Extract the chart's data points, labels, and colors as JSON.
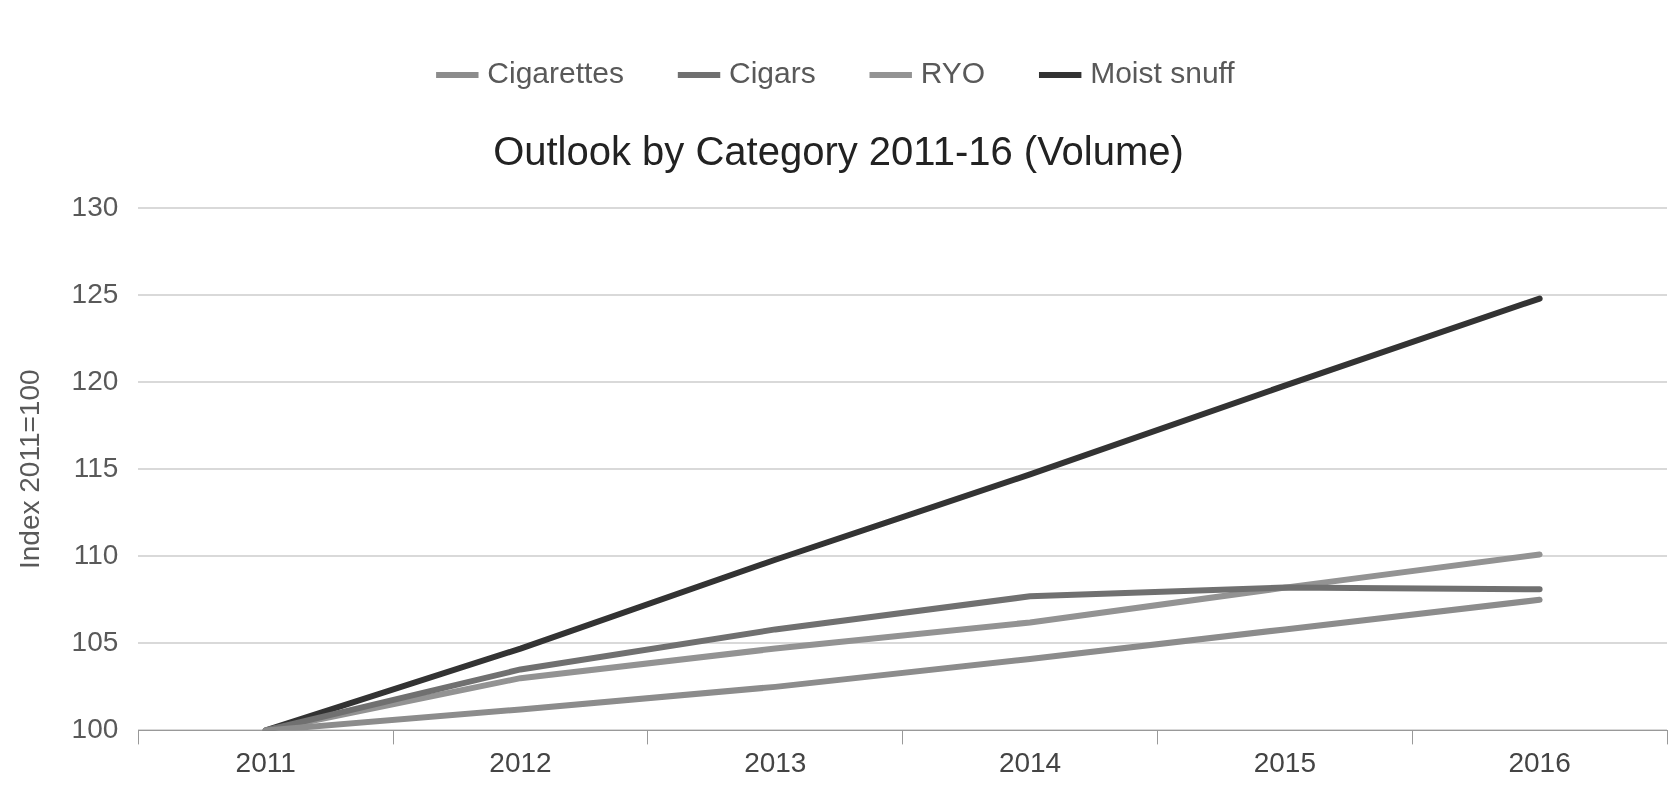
{
  "chart_data": {
    "type": "line",
    "title": "Outlook by Category 2011-16 (Volume)",
    "ylabel": "Index 2011=100",
    "categories": [
      "2011",
      "2012",
      "2013",
      "2014",
      "2015",
      "2016"
    ],
    "series": [
      {
        "name": "Cigarettes",
        "color": "#8c8c8c",
        "values": [
          100,
          101.2,
          102.5,
          104.1,
          105.8,
          107.5
        ]
      },
      {
        "name": "Cigars",
        "color": "#707070",
        "values": [
          100,
          103.5,
          105.8,
          107.7,
          108.2,
          108.1
        ]
      },
      {
        "name": "RYO",
        "color": "#939393",
        "values": [
          100,
          103.0,
          104.7,
          106.2,
          108.2,
          110.1
        ]
      },
      {
        "name": "Moist snuff",
        "color": "#333333",
        "values": [
          100,
          104.7,
          109.8,
          114.7,
          119.8,
          124.8
        ]
      }
    ],
    "ylim": [
      100,
      130
    ],
    "yticks": [
      100,
      105,
      110,
      115,
      120,
      125,
      130
    ],
    "grid": "y",
    "legend": "top",
    "marker": "none",
    "line_style": "solid"
  }
}
